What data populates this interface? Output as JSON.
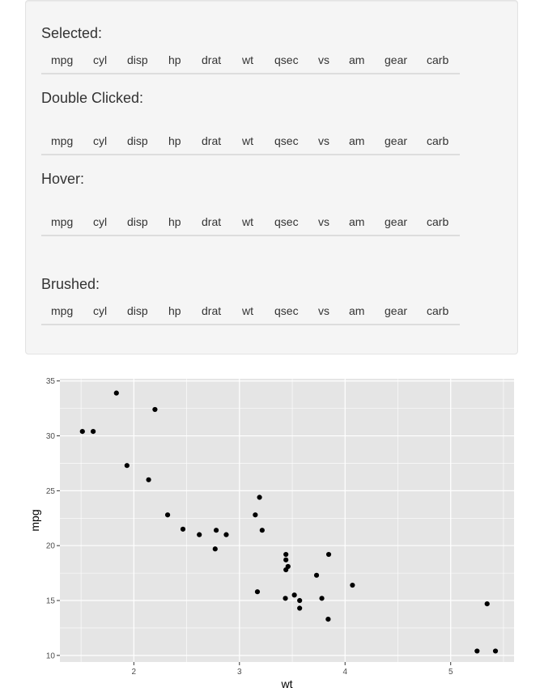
{
  "sections": {
    "selected": {
      "title": "Selected:"
    },
    "double_clicked": {
      "title": "Double Clicked:"
    },
    "hover": {
      "title": "Hover:"
    },
    "brushed": {
      "title": "Brushed:"
    }
  },
  "table_columns": [
    "mpg",
    "cyl",
    "disp",
    "hp",
    "drat",
    "wt",
    "qsec",
    "vs",
    "am",
    "gear",
    "carb"
  ],
  "colors": {
    "panel_bg": "#e5e5e5",
    "grid": "#ffffff",
    "point": "#000000",
    "well_bg": "#f5f5f5"
  },
  "chart_data": {
    "type": "scatter",
    "title": "",
    "xlabel": "wt",
    "ylabel": "mpg",
    "xlim": [
      1.3,
      5.6
    ],
    "ylim": [
      9.4,
      35.2
    ],
    "x_ticks": [
      2,
      3,
      4,
      5
    ],
    "y_ticks": [
      10,
      15,
      20,
      25,
      30,
      35
    ],
    "grid": true,
    "points": [
      {
        "x": 2.62,
        "y": 21.0
      },
      {
        "x": 2.875,
        "y": 21.0
      },
      {
        "x": 2.32,
        "y": 22.8
      },
      {
        "x": 3.215,
        "y": 21.4
      },
      {
        "x": 3.44,
        "y": 18.7
      },
      {
        "x": 3.46,
        "y": 18.1
      },
      {
        "x": 3.57,
        "y": 14.3
      },
      {
        "x": 3.19,
        "y": 24.4
      },
      {
        "x": 3.15,
        "y": 22.8
      },
      {
        "x": 3.44,
        "y": 19.2
      },
      {
        "x": 3.44,
        "y": 17.8
      },
      {
        "x": 4.07,
        "y": 16.4
      },
      {
        "x": 3.73,
        "y": 17.3
      },
      {
        "x": 3.78,
        "y": 15.2
      },
      {
        "x": 5.25,
        "y": 10.4
      },
      {
        "x": 5.424,
        "y": 10.4
      },
      {
        "x": 5.345,
        "y": 14.7
      },
      {
        "x": 2.2,
        "y": 32.4
      },
      {
        "x": 1.615,
        "y": 30.4
      },
      {
        "x": 1.835,
        "y": 33.9
      },
      {
        "x": 2.465,
        "y": 21.5
      },
      {
        "x": 3.52,
        "y": 15.5
      },
      {
        "x": 3.435,
        "y": 15.2
      },
      {
        "x": 3.84,
        "y": 13.3
      },
      {
        "x": 3.845,
        "y": 19.2
      },
      {
        "x": 1.935,
        "y": 27.3
      },
      {
        "x": 2.14,
        "y": 26.0
      },
      {
        "x": 1.513,
        "y": 30.4
      },
      {
        "x": 3.17,
        "y": 15.8
      },
      {
        "x": 2.77,
        "y": 19.7
      },
      {
        "x": 3.57,
        "y": 15.0
      },
      {
        "x": 2.78,
        "y": 21.4
      }
    ]
  }
}
